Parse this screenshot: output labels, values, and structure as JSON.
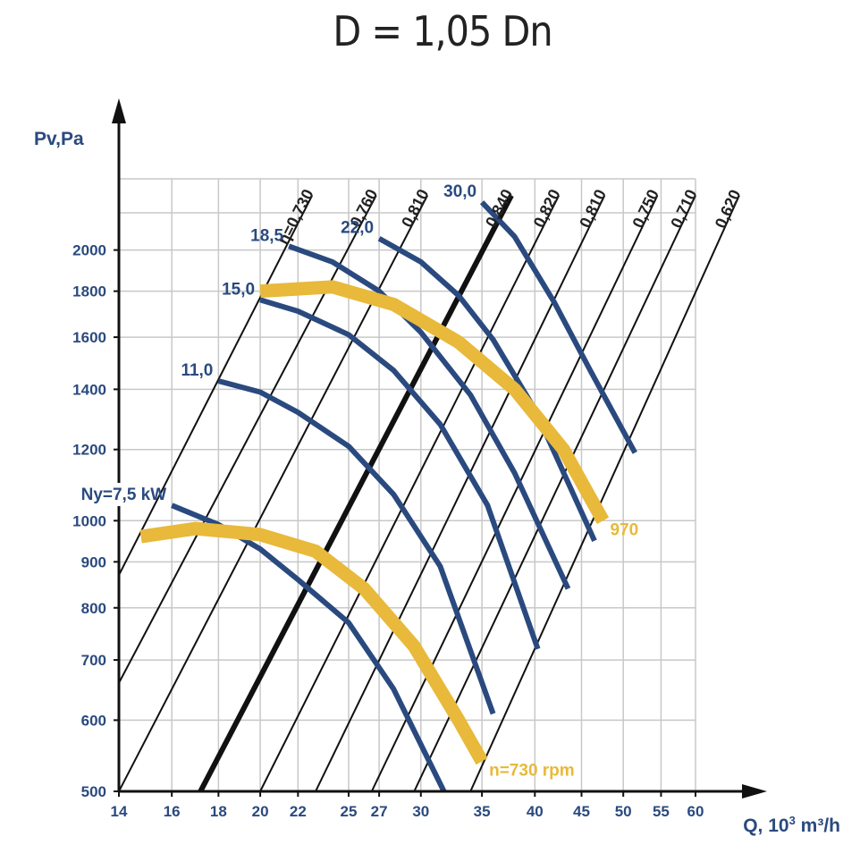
{
  "title": "D = 1,05 Dn",
  "chart_data": {
    "type": "line",
    "title": "D = 1,05 Dn",
    "xlabel_main": "Q, 10",
    "xlabel_sup": "3",
    "xlabel_unit": " m³/h",
    "ylabel": "Pv,Pa",
    "x_scale": "log",
    "y_scale": "log",
    "x_ticks": [
      14,
      16,
      18,
      20,
      22,
      25,
      27,
      30,
      35,
      40,
      45,
      50,
      55,
      60
    ],
    "y_ticks": [
      500,
      600,
      700,
      800,
      900,
      1000,
      1200,
      1400,
      1600,
      1800,
      2000
    ],
    "xlim": [
      14,
      60
    ],
    "ylim": [
      500,
      2400
    ],
    "grid": true,
    "efficiency_lines": [
      {
        "label": "η=0,730",
        "points": [
          [
            14,
            870
          ],
          [
            22.8,
            2300
          ]
        ],
        "bold": false
      },
      {
        "label": "0,760",
        "points": [
          [
            14,
            660
          ],
          [
            26.8,
            2300
          ]
        ],
        "bold": false
      },
      {
        "label": "0,810",
        "points": [
          [
            14,
            500
          ],
          [
            30.5,
            2300
          ]
        ],
        "bold": false
      },
      {
        "label": "0,840",
        "points": [
          [
            17.2,
            500
          ],
          [
            37.7,
            2300
          ]
        ],
        "bold": true
      },
      {
        "label": "0,820",
        "points": [
          [
            20,
            500
          ],
          [
            42.5,
            2300
          ]
        ],
        "bold": false
      },
      {
        "label": "0,810",
        "points": [
          [
            23,
            500
          ],
          [
            47.7,
            2300
          ]
        ],
        "bold": false
      },
      {
        "label": "0,750",
        "points": [
          [
            26.5,
            500
          ],
          [
            54.5,
            2300
          ]
        ],
        "bold": false
      },
      {
        "label": "0,710",
        "points": [
          [
            29.5,
            500
          ],
          [
            60,
            2300
          ]
        ],
        "bold": false
      },
      {
        "label": "0,620",
        "points": [
          [
            34,
            500
          ],
          [
            67,
            2300
          ]
        ],
        "bold": false
      }
    ],
    "power_curves": [
      {
        "label": "Ny=7,5 kW",
        "points": [
          [
            16,
            1040
          ],
          [
            18,
            990
          ],
          [
            20,
            930
          ],
          [
            22,
            860
          ],
          [
            25,
            770
          ],
          [
            28,
            650
          ],
          [
            31.8,
            500
          ]
        ]
      },
      {
        "label": "11,0",
        "points": [
          [
            18,
            1430
          ],
          [
            20,
            1390
          ],
          [
            22,
            1320
          ],
          [
            25,
            1210
          ],
          [
            28,
            1070
          ],
          [
            31.5,
            890
          ],
          [
            36,
            610
          ]
        ]
      },
      {
        "label": "15,0",
        "points": [
          [
            20,
            1760
          ],
          [
            22,
            1710
          ],
          [
            25,
            1610
          ],
          [
            28,
            1470
          ],
          [
            31.5,
            1280
          ],
          [
            35.5,
            1040
          ],
          [
            40.3,
            720
          ]
        ]
      },
      {
        "label": "18,5",
        "points": [
          [
            21.5,
            2020
          ],
          [
            24,
            1940
          ],
          [
            27,
            1800
          ],
          [
            30,
            1620
          ],
          [
            34,
            1380
          ],
          [
            38,
            1130
          ],
          [
            43.5,
            840
          ]
        ]
      },
      {
        "label": "22,0",
        "points": [
          [
            27,
            2060
          ],
          [
            30,
            1940
          ],
          [
            33,
            1780
          ],
          [
            36,
            1590
          ],
          [
            40,
            1330
          ],
          [
            46.5,
            950
          ]
        ]
      },
      {
        "label": "30,0",
        "points": [
          [
            35,
            2260
          ],
          [
            38,
            2070
          ],
          [
            42,
            1750
          ],
          [
            46,
            1470
          ],
          [
            51.5,
            1190
          ]
        ]
      }
    ],
    "speed_curves": [
      {
        "label": "n=730 rpm",
        "points": [
          [
            14.8,
            960
          ],
          [
            17,
            980
          ],
          [
            20,
            965
          ],
          [
            23,
            925
          ],
          [
            26,
            840
          ],
          [
            29.5,
            725
          ],
          [
            33,
            600
          ],
          [
            35,
            540
          ]
        ]
      },
      {
        "label": "970",
        "points": [
          [
            20,
            1800
          ],
          [
            24,
            1820
          ],
          [
            28,
            1740
          ],
          [
            33,
            1580
          ],
          [
            38,
            1400
          ],
          [
            43,
            1200
          ],
          [
            47.5,
            1000
          ]
        ]
      }
    ],
    "colors": {
      "grid": "#c8c8c8",
      "axis": "#111111",
      "efficiency": "#111111",
      "power": "#2a4a7f",
      "speed": "#e8b93a",
      "labels": "#2a4a7f"
    }
  }
}
